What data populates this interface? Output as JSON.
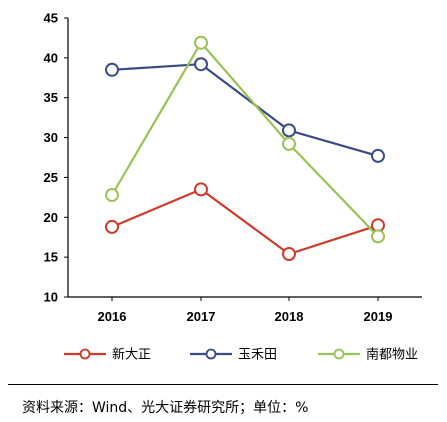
{
  "chart_data": {
    "type": "line",
    "categories": [
      "2016",
      "2017",
      "2018",
      "2019"
    ],
    "ylim": [
      10,
      45
    ],
    "yticks": [
      10,
      15,
      20,
      25,
      30,
      35,
      40,
      45
    ],
    "grid": false,
    "legend_position": "bottom",
    "series": [
      {
        "name": "新大正",
        "color": "#cf3a2a",
        "values": [
          18.8,
          23.5,
          15.4,
          19.0
        ]
      },
      {
        "name": "玉禾田",
        "color": "#3a4b86",
        "values": [
          38.5,
          39.2,
          30.9,
          27.7
        ]
      },
      {
        "name": "南都物业",
        "color": "#9ac153",
        "values": [
          22.8,
          41.9,
          29.2,
          17.6
        ]
      }
    ]
  },
  "source_note": "资料来源：Wind、光大证券研究所；单位：%"
}
